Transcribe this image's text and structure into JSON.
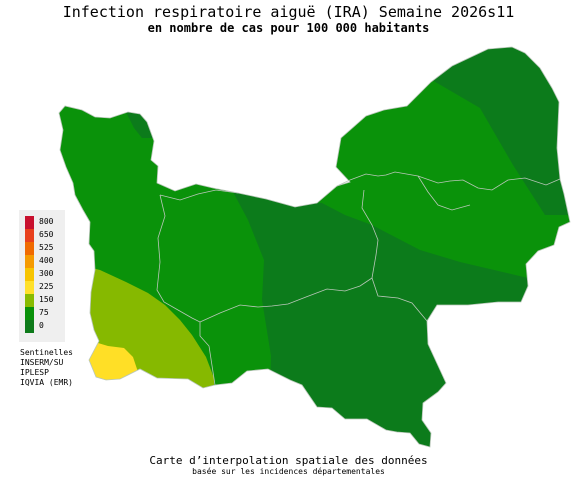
{
  "header": {
    "title": "Infection respiratoire aiguë (IRA) Semaine 2026s11",
    "subtitle": "en nombre de cas pour 100 000 habitants"
  },
  "legend": {
    "items": [
      {
        "label": "800",
        "color": "#c8102e"
      },
      {
        "label": "650",
        "color": "#e8401c"
      },
      {
        "label": "525",
        "color": "#f06a00"
      },
      {
        "label": "400",
        "color": "#f59a00"
      },
      {
        "label": "300",
        "color": "#f7c400"
      },
      {
        "label": "225",
        "color": "#ffe02a"
      },
      {
        "label": "150",
        "color": "#88bb00"
      },
      {
        "label": "75",
        "color": "#099109"
      },
      {
        "label": "0",
        "color": "#0d7a1a"
      }
    ]
  },
  "sources": {
    "line1": "Sentinelles",
    "line2": "INSERM/SU",
    "line3": "IPLESP",
    "line4": "IQVIA (EMR)"
  },
  "footer": {
    "caption": "Carte d’interpolation spatiale des données",
    "caption_sub": "basée sur les incidences départementales"
  },
  "map_colors": {
    "dark_green": "#0c7b1b",
    "medium_green": "#0a920a",
    "light_green": "#86b900",
    "yellow": "#ffdf26",
    "border": "#b9c7b9"
  }
}
